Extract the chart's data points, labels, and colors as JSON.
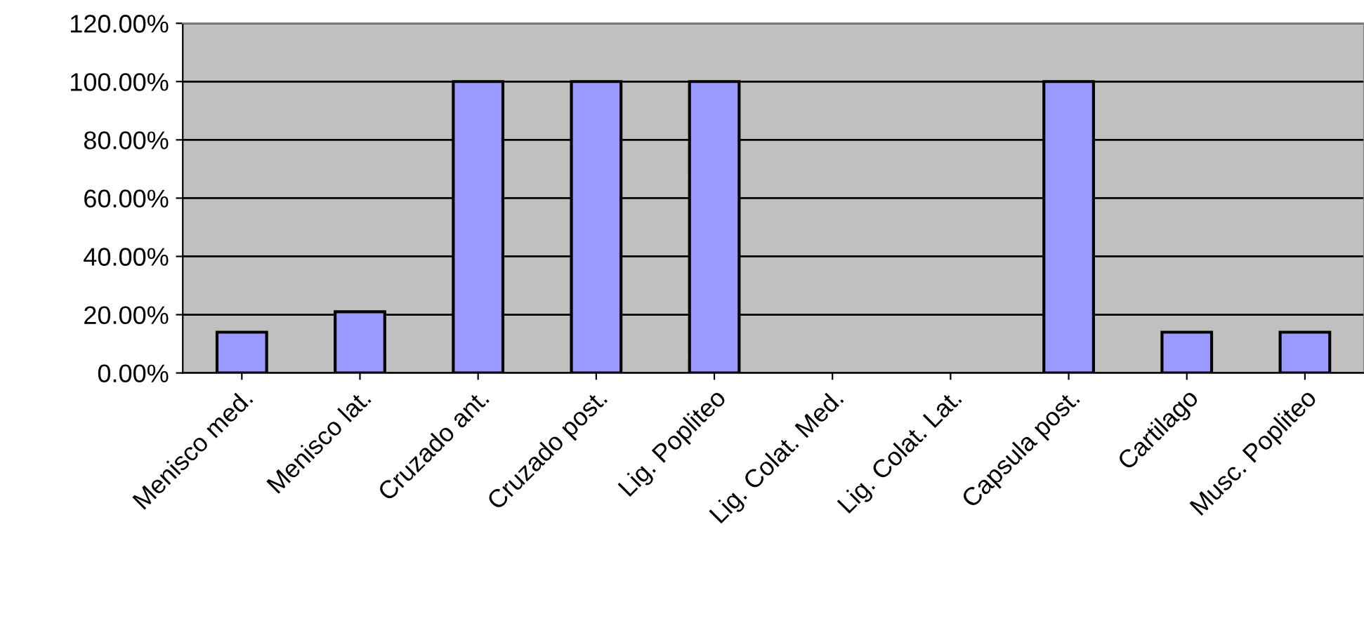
{
  "chart_data": {
    "type": "bar",
    "categories": [
      "Menisco med.",
      "Menisco lat.",
      "Cruzado ant.",
      "Cruzado post.",
      "Lig. Popliteo",
      "Lig. Colat. Med.",
      "Lig. Colat. Lat.",
      "Capsula post.",
      "Cartilago",
      "Musc. Popliteo"
    ],
    "values": [
      14,
      21,
      100,
      100,
      100,
      null,
      null,
      100,
      14,
      14
    ],
    "color": "#9999ff",
    "ylim": [
      0,
      120
    ],
    "yticks": [
      {
        "value": 0,
        "label": "0.00%"
      },
      {
        "value": 20,
        "label": "20.00%"
      },
      {
        "value": 40,
        "label": "40.00%"
      },
      {
        "value": 60,
        "label": "60.00%"
      },
      {
        "value": 80,
        "label": "80.00%"
      },
      {
        "value": 100,
        "label": "100.00%"
      },
      {
        "value": 120,
        "label": "120.00%"
      }
    ],
    "grid": "y",
    "legend": false
  }
}
